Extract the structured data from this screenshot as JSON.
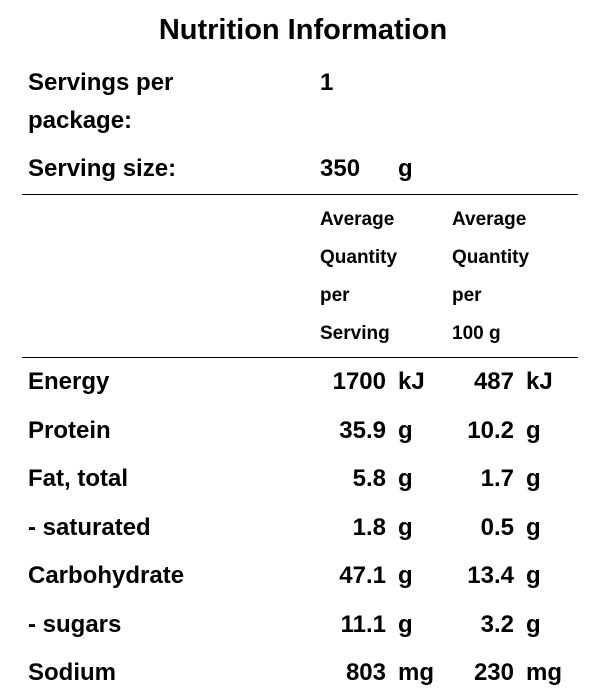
{
  "title": "Nutrition Information",
  "servings": {
    "label": "Servings per package:",
    "value": "1"
  },
  "serving_size": {
    "label": "Serving size:",
    "value": "350",
    "unit": "g"
  },
  "header": {
    "per_serving": [
      "Average",
      "Quantity",
      "per",
      "Serving"
    ],
    "per_100g": [
      "Average",
      "Quantity",
      "per",
      "100 g"
    ]
  },
  "rows": [
    {
      "name": "Energy",
      "per_serving": "1700",
      "unit_serving": "kJ",
      "per_100g": "487",
      "unit_100g": "kJ"
    },
    {
      "name": "Protein",
      "per_serving": "35.9",
      "unit_serving": "g",
      "per_100g": "10.2",
      "unit_100g": "g"
    },
    {
      "name": "Fat, total",
      "per_serving": "5.8",
      "unit_serving": "g",
      "per_100g": "1.7",
      "unit_100g": "g"
    },
    {
      "name": "- saturated",
      "per_serving": "1.8",
      "unit_serving": "g",
      "per_100g": "0.5",
      "unit_100g": "g"
    },
    {
      "name": "Carbohydrate",
      "per_serving": "47.1",
      "unit_serving": "g",
      "per_100g": "13.4",
      "unit_100g": "g"
    },
    {
      "name": "- sugars",
      "per_serving": "11.1",
      "unit_serving": "g",
      "per_100g": "3.2",
      "unit_100g": "g"
    },
    {
      "name": "Sodium",
      "per_serving": "803",
      "unit_serving": "mg",
      "per_100g": "230",
      "unit_100g": "mg"
    }
  ]
}
